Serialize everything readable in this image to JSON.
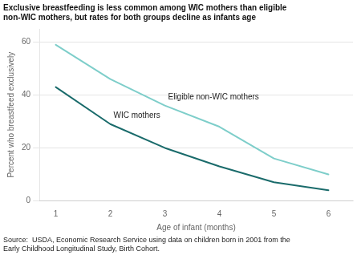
{
  "chart_data": {
    "type": "line",
    "title": [
      "Exclusive breastfeeding is less common among WIC mothers than eligible",
      "non-WIC mothers, but rates for both groups decline as infants age"
    ],
    "xlabel": "Age of infant (months)",
    "ylabel": "Percent who breastfeed exclusively",
    "source": "Source:  USDA, Economic Research Service using data on children born in 2001 from the\nEarly Childhood Longitudinal Study, Birth Cohort.",
    "x": [
      1,
      2,
      3,
      4,
      5,
      6
    ],
    "series": [
      {
        "name": "Eligible non-WIC mothers",
        "color": "#7ececa",
        "values": [
          59,
          46,
          36,
          28,
          16,
          10
        ]
      },
      {
        "name": "WIC mothers",
        "color": "#1a6b6b",
        "values": [
          43,
          29,
          20,
          13,
          7,
          4
        ]
      }
    ],
    "xlim": [
      0.7,
      6.45
    ],
    "ylim": [
      0,
      65
    ],
    "xticks": [
      1,
      2,
      3,
      4,
      5,
      6
    ],
    "yticks": [
      0,
      20,
      40,
      60
    ],
    "grid": true
  }
}
